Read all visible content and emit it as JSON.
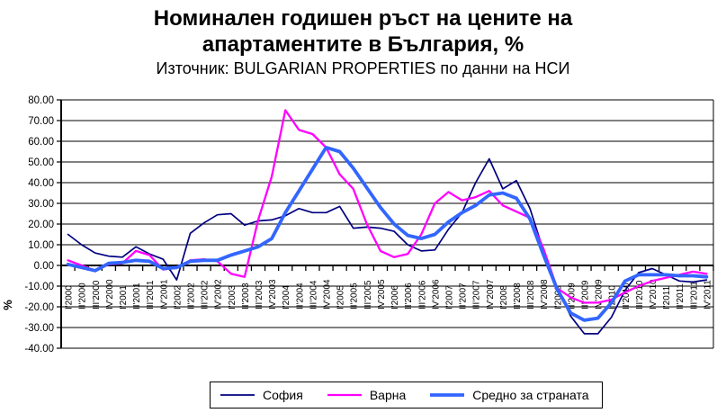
{
  "title": "Номинален годишен ръст на цените на апартаментите в България, %",
  "subtitle": "Източник: BULGARIAN PROPERTIES по данни на НСИ",
  "chart_data": {
    "type": "line",
    "title": "Номинален годишен ръст на цените на апартаментите в България, %",
    "subtitle": "Източник: BULGARIAN PROPERTIES по данни на НСИ",
    "xlabel": "",
    "ylabel": "%",
    "ylim": [
      -40,
      80
    ],
    "ytick_step": 10,
    "ytick_labels": [
      "80.00",
      "70.00",
      "60.00",
      "50.00",
      "40.00",
      "30.00",
      "20.00",
      "10.00",
      "0.00",
      "-10.00",
      "-20.00",
      "-30.00",
      "-40.00"
    ],
    "grid": true,
    "legend_position": "bottom",
    "axis_color": "#000000",
    "categories": [
      "I'2000",
      "II'2000",
      "III'2000",
      "IV'2000",
      "I'2001",
      "II'2001",
      "III'2001",
      "IV'2001",
      "I'2002",
      "II'2002",
      "III'2002",
      "IV'2002",
      "I'2003",
      "II'2003",
      "III'2003",
      "IV'2003",
      "I'2004",
      "II'2004",
      "III'2004",
      "IV'2004",
      "I'2005",
      "II'2005",
      "III'2005",
      "IV'2005",
      "I'2006",
      "II'2006",
      "III'2006",
      "IV'2006",
      "I'2007",
      "II'2007",
      "III'2007",
      "IV'2007",
      "I'2008",
      "II'2008",
      "III'2008",
      "IV'2008",
      "I'2009",
      "II'2009",
      "III'2009",
      "IV'2009",
      "I'2010",
      "II'2010",
      "III'2010",
      "IV'2010",
      "I'2011",
      "II'2011",
      "III'2011",
      "IV'2011"
    ],
    "series": [
      {
        "name": "София",
        "color": "#000080",
        "stroke_width": 1.7,
        "values": [
          15,
          10,
          6,
          4.5,
          4,
          9,
          5.5,
          3,
          -7,
          15.5,
          20.5,
          24.5,
          25,
          19.5,
          21.5,
          22,
          24,
          27.5,
          25.5,
          25.5,
          28.5,
          18,
          18.5,
          18,
          16.5,
          10,
          7,
          7.5,
          17.5,
          25.5,
          40,
          51.5,
          37,
          41,
          27.5,
          7,
          -11,
          -24.5,
          -33,
          -33,
          -25,
          -12,
          -3.5,
          -1.5,
          -4.5,
          -7.5,
          -8,
          -7
        ]
      },
      {
        "name": "Варна",
        "color": "#FF00FF",
        "stroke_width": 2.3,
        "values": [
          2.5,
          0,
          -2.5,
          0.5,
          1,
          7,
          5,
          -2,
          -1,
          2.5,
          3,
          2,
          -4,
          -5.5,
          22,
          43,
          75,
          65.5,
          63.5,
          57,
          44,
          37,
          20,
          7,
          4,
          5.5,
          15,
          30,
          35.5,
          31.5,
          33,
          36,
          29,
          26,
          23,
          8,
          -11,
          -15.5,
          -18,
          -18,
          -16.5,
          -13,
          -10,
          -7.5,
          -6,
          -4.5,
          -3,
          -4
        ]
      },
      {
        "name": "Средно за страната",
        "color": "#3366FF",
        "stroke_width": 3.8,
        "values": [
          0.5,
          -1,
          -2.5,
          1,
          1.5,
          2.5,
          2,
          -1.5,
          -1,
          2,
          2.5,
          2.5,
          5,
          7,
          9,
          13,
          25.5,
          36,
          46.5,
          57,
          55,
          47,
          37.5,
          28,
          20,
          14.5,
          13,
          15,
          21,
          25.5,
          29,
          34,
          35,
          32.5,
          22.5,
          5,
          -11.5,
          -23,
          -26.5,
          -25.5,
          -18,
          -7.5,
          -4.5,
          -4.5,
          -4.5,
          -5,
          -5,
          -5.5
        ]
      }
    ]
  }
}
